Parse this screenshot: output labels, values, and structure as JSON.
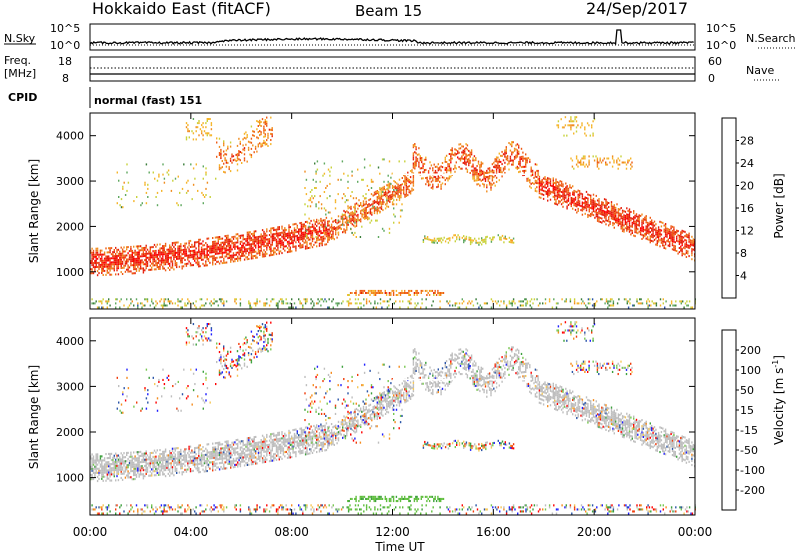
{
  "header": {
    "station": "Hokkaido East (fitACF)",
    "beam": "Beam 15",
    "date": "24/Sep/2017"
  },
  "noise_panel": {
    "left_label": "N.Sky",
    "left_ticks": [
      "10^5",
      "10^0"
    ],
    "right_label": "N.Search",
    "right_ticks": [
      "10^5",
      "10^0"
    ]
  },
  "freq_panel": {
    "left_label_1": "Freq.",
    "left_label_2": "[MHz]",
    "left_ticks": [
      "18",
      "8"
    ],
    "right_label": "Nave",
    "right_ticks": [
      "60",
      "0"
    ]
  },
  "cpid": {
    "label": "CPID",
    "mode": "normal (fast) 151"
  },
  "colors": {
    "power_scale": [
      "#1f1fff",
      "#2b55a8",
      "#3a7d3a",
      "#5fa85f",
      "#c8d23c",
      "#f5b428",
      "#f08c1e",
      "#ee5a14",
      "#e61e0a",
      "#ff0000"
    ],
    "velocity_scale": [
      "#ff0000",
      "#f03c0a",
      "#f58c1e",
      "#f5c85a",
      "#bebebe",
      "#bebebe",
      "#78c850",
      "#3ca03c",
      "#2b55a8",
      "#1f1fff"
    ],
    "ground_scatter": "#bebebe"
  },
  "chart_data": [
    {
      "type": "heatmap",
      "name": "power",
      "ylabel": "Slant Range [km]",
      "yticks": [
        "1000",
        "2000",
        "3000",
        "4000"
      ],
      "ylim": [
        180,
        4500
      ],
      "xlim": [
        0,
        24
      ],
      "xticks": [
        "00:00",
        "04:00",
        "08:00",
        "12:00",
        "16:00",
        "20:00",
        "00:00"
      ],
      "colorbar": {
        "label": "Power [dB]",
        "ticks": [
          "28",
          "24",
          "20",
          "16",
          "12",
          "8",
          "4"
        ],
        "range": [
          0,
          30
        ]
      }
    },
    {
      "type": "heatmap",
      "name": "velocity",
      "ylabel": "Slant Range [km]",
      "yticks": [
        "1000",
        "2000",
        "3000",
        "4000"
      ],
      "ylim": [
        180,
        4500
      ],
      "xlim": [
        0,
        24
      ],
      "xticks": [
        "00:00",
        "04:00",
        "08:00",
        "12:00",
        "16:00",
        "20:00",
        "00:00"
      ],
      "xlabel": "Time UT",
      "colorbar": {
        "label": "Velocity [m s",
        "label_sup": "-1",
        "label_end": "]",
        "ticks": [
          "200",
          "100",
          "50",
          "15",
          "-15",
          "-50",
          "-100",
          "-200"
        ],
        "range": [
          -250,
          250
        ]
      }
    }
  ]
}
